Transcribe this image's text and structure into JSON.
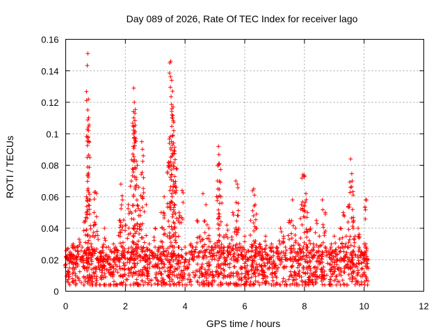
{
  "chart_data": {
    "type": "scatter",
    "title": "Day 089 of 2026, Rate Of TEC Index for receiver lago",
    "xlabel": "GPS time / hours",
    "ylabel": "ROTI / TECUs",
    "xlim": [
      0,
      12
    ],
    "ylim": [
      0,
      0.16
    ],
    "xticks": [
      0,
      2,
      4,
      6,
      8,
      10,
      12
    ],
    "xtick_labels": [
      "0",
      "2",
      "4",
      "6",
      "8",
      "10",
      "12"
    ],
    "yticks": [
      0,
      0.02,
      0.04,
      0.06,
      0.08,
      0.1,
      0.12,
      0.14,
      0.16
    ],
    "ytick_labels": [
      "0",
      "0.02",
      "0.04",
      "0.06",
      "0.08",
      "0.1",
      "0.12",
      "0.14",
      "0.16"
    ],
    "grid": true,
    "marker": "+",
    "color": "#ff0000",
    "series": [
      {
        "name": "ROTI",
        "x": [
          0.0,
          0.05,
          0.1,
          0.15,
          0.2,
          0.25,
          0.3,
          0.35,
          0.4,
          0.45,
          0.5,
          0.55,
          0.6,
          0.65,
          0.7,
          0.72,
          0.74,
          0.76,
          0.78,
          0.8,
          0.85,
          0.9,
          0.95,
          1.0,
          1.05,
          1.1,
          1.2,
          1.3,
          1.4,
          1.5,
          1.6,
          1.7,
          1.8,
          1.85,
          1.9,
          2.0,
          2.1,
          2.2,
          2.25,
          2.28,
          2.3,
          2.32,
          2.35,
          2.4,
          2.45,
          2.5,
          2.55,
          2.6,
          2.7,
          2.8,
          2.9,
          3.0,
          3.1,
          3.2,
          3.3,
          3.4,
          3.45,
          3.5,
          3.52,
          3.55,
          3.58,
          3.6,
          3.62,
          3.65,
          3.7,
          3.8,
          3.9,
          4.0,
          4.1,
          4.2,
          4.3,
          4.4,
          4.5,
          4.6,
          4.7,
          4.8,
          4.9,
          5.0,
          5.1,
          5.12,
          5.15,
          5.2,
          5.3,
          5.4,
          5.5,
          5.6,
          5.7,
          5.75,
          5.8,
          5.9,
          6.0,
          6.1,
          6.2,
          6.3,
          6.35,
          6.4,
          6.5,
          6.6,
          6.7,
          6.8,
          6.9,
          7.0,
          7.1,
          7.2,
          7.3,
          7.4,
          7.5,
          7.6,
          7.7,
          7.8,
          7.9,
          7.95,
          8.0,
          8.05,
          8.1,
          8.2,
          8.3,
          8.4,
          8.5,
          8.6,
          8.7,
          8.8,
          8.9,
          9.0,
          9.1,
          9.2,
          9.3,
          9.4,
          9.5,
          9.55,
          9.6,
          9.65,
          9.7,
          9.8,
          9.9,
          10.0,
          10.05,
          10.1
        ],
        "y": [
          0.015,
          0.02,
          0.012,
          0.025,
          0.018,
          0.03,
          0.014,
          0.022,
          0.016,
          0.033,
          0.02,
          0.028,
          0.018,
          0.045,
          0.06,
          0.085,
          0.151,
          0.122,
          0.095,
          0.052,
          0.03,
          0.024,
          0.05,
          0.063,
          0.038,
          0.018,
          0.025,
          0.04,
          0.02,
          0.015,
          0.03,
          0.022,
          0.045,
          0.068,
          0.058,
          0.042,
          0.055,
          0.07,
          0.105,
          0.129,
          0.12,
          0.113,
          0.097,
          0.08,
          0.066,
          0.048,
          0.095,
          0.086,
          0.055,
          0.03,
          0.025,
          0.04,
          0.02,
          0.05,
          0.06,
          0.035,
          0.082,
          0.098,
          0.146,
          0.134,
          0.127,
          0.117,
          0.102,
          0.089,
          0.078,
          0.05,
          0.064,
          0.02,
          0.015,
          0.03,
          0.025,
          0.045,
          0.035,
          0.062,
          0.055,
          0.04,
          0.028,
          0.03,
          0.065,
          0.092,
          0.081,
          0.06,
          0.035,
          0.042,
          0.03,
          0.05,
          0.07,
          0.068,
          0.04,
          0.025,
          0.035,
          0.02,
          0.045,
          0.065,
          0.055,
          0.04,
          0.03,
          0.025,
          0.035,
          0.02,
          0.03,
          0.015,
          0.025,
          0.04,
          0.035,
          0.02,
          0.045,
          0.058,
          0.04,
          0.03,
          0.055,
          0.074,
          0.073,
          0.062,
          0.05,
          0.04,
          0.03,
          0.045,
          0.035,
          0.058,
          0.05,
          0.025,
          0.03,
          0.035,
          0.02,
          0.04,
          0.05,
          0.035,
          0.055,
          0.084,
          0.07,
          0.045,
          0.035,
          0.04,
          0.025,
          0.03,
          0.058,
          0.02
        ]
      }
    ],
    "baseline_band": {
      "x_start": 0.0,
      "x_end": 10.15,
      "y_low": 0.004,
      "y_high": 0.028,
      "description_values": [
        0.005,
        0.01,
        0.015,
        0.02,
        0.025
      ]
    }
  }
}
